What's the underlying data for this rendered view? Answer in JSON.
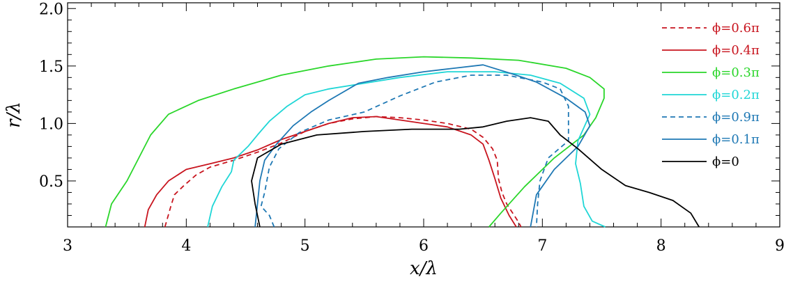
{
  "chart_data": {
    "type": "line",
    "title": "",
    "xlabel": "x/λ",
    "ylabel": "r/λ",
    "xlim": [
      3,
      9
    ],
    "ylim": [
      0.1,
      2.05
    ],
    "x_ticks": [
      3,
      4,
      5,
      6,
      7,
      8,
      9
    ],
    "x_tick_labels": [
      "3",
      "4",
      "5",
      "6",
      "7",
      "8",
      "9"
    ],
    "y_ticks": [
      0.5,
      1.0,
      1.5,
      2.0
    ],
    "y_tick_labels": [
      "0.5",
      "1.0",
      "1.5",
      "2.0"
    ],
    "grid": false,
    "legend_position": "top-right",
    "series": [
      {
        "name": "ϕ=0.6π",
        "color": "#c8141e",
        "dash": "dashed",
        "points": [
          [
            3.82,
            0.1
          ],
          [
            3.87,
            0.28
          ],
          [
            3.9,
            0.38
          ],
          [
            3.98,
            0.46
          ],
          [
            4.08,
            0.55
          ],
          [
            4.2,
            0.62
          ],
          [
            4.4,
            0.68
          ],
          [
            4.6,
            0.75
          ],
          [
            4.8,
            0.83
          ],
          [
            5.0,
            0.93
          ],
          [
            5.2,
            1.0
          ],
          [
            5.4,
            1.04
          ],
          [
            5.6,
            1.06
          ],
          [
            5.8,
            1.05
          ],
          [
            6.0,
            1.03
          ],
          [
            6.2,
            1.0
          ],
          [
            6.4,
            0.95
          ],
          [
            6.5,
            0.88
          ],
          [
            6.58,
            0.78
          ],
          [
            6.62,
            0.68
          ],
          [
            6.63,
            0.52
          ],
          [
            6.66,
            0.4
          ],
          [
            6.7,
            0.3
          ],
          [
            6.75,
            0.22
          ],
          [
            6.8,
            0.14
          ],
          [
            6.82,
            0.1
          ]
        ]
      },
      {
        "name": "ϕ=0.4π",
        "color": "#c8141e",
        "dash": "solid",
        "points": [
          [
            3.65,
            0.1
          ],
          [
            3.68,
            0.25
          ],
          [
            3.75,
            0.38
          ],
          [
            3.85,
            0.5
          ],
          [
            4.0,
            0.6
          ],
          [
            4.2,
            0.65
          ],
          [
            4.4,
            0.7
          ],
          [
            4.6,
            0.77
          ],
          [
            4.8,
            0.86
          ],
          [
            5.0,
            0.93
          ],
          [
            5.2,
            1.0
          ],
          [
            5.4,
            1.05
          ],
          [
            5.6,
            1.06
          ],
          [
            5.8,
            1.03
          ],
          [
            6.0,
            1.0
          ],
          [
            6.2,
            0.97
          ],
          [
            6.4,
            0.9
          ],
          [
            6.5,
            0.82
          ],
          [
            6.55,
            0.68
          ],
          [
            6.6,
            0.52
          ],
          [
            6.65,
            0.35
          ],
          [
            6.72,
            0.2
          ],
          [
            6.78,
            0.1
          ]
        ]
      },
      {
        "name": "ϕ=0.3π",
        "color": "#2ad62a",
        "dash": "solid",
        "points": [
          [
            3.32,
            0.1
          ],
          [
            3.37,
            0.3
          ],
          [
            3.5,
            0.5
          ],
          [
            3.6,
            0.7
          ],
          [
            3.7,
            0.9
          ],
          [
            3.85,
            1.08
          ],
          [
            4.1,
            1.2
          ],
          [
            4.4,
            1.3
          ],
          [
            4.8,
            1.42
          ],
          [
            5.2,
            1.5
          ],
          [
            5.6,
            1.56
          ],
          [
            6.0,
            1.58
          ],
          [
            6.4,
            1.57
          ],
          [
            6.8,
            1.55
          ],
          [
            7.2,
            1.48
          ],
          [
            7.4,
            1.4
          ],
          [
            7.52,
            1.3
          ],
          [
            7.52,
            1.22
          ],
          [
            7.45,
            1.05
          ],
          [
            7.35,
            0.9
          ],
          [
            7.1,
            0.7
          ],
          [
            6.85,
            0.45
          ],
          [
            6.65,
            0.22
          ],
          [
            6.55,
            0.1
          ]
        ]
      },
      {
        "name": "ϕ=0.2π",
        "color": "#1fd6d6",
        "dash": "solid",
        "points": [
          [
            4.18,
            0.1
          ],
          [
            4.22,
            0.28
          ],
          [
            4.3,
            0.45
          ],
          [
            4.38,
            0.58
          ],
          [
            4.4,
            0.68
          ],
          [
            4.52,
            0.8
          ],
          [
            4.6,
            0.9
          ],
          [
            4.7,
            1.02
          ],
          [
            4.85,
            1.15
          ],
          [
            5.0,
            1.25
          ],
          [
            5.2,
            1.3
          ],
          [
            5.5,
            1.35
          ],
          [
            5.8,
            1.4
          ],
          [
            6.2,
            1.45
          ],
          [
            6.6,
            1.45
          ],
          [
            6.9,
            1.42
          ],
          [
            7.15,
            1.35
          ],
          [
            7.35,
            1.22
          ],
          [
            7.4,
            1.08
          ],
          [
            7.3,
            0.85
          ],
          [
            7.28,
            0.65
          ],
          [
            7.32,
            0.48
          ],
          [
            7.35,
            0.28
          ],
          [
            7.42,
            0.15
          ],
          [
            7.53,
            0.1
          ]
        ]
      },
      {
        "name": "ϕ=0.9π",
        "color": "#1e78b4",
        "dash": "dashed",
        "points": [
          [
            4.74,
            0.1
          ],
          [
            4.7,
            0.2
          ],
          [
            4.63,
            0.28
          ],
          [
            4.66,
            0.4
          ],
          [
            4.7,
            0.62
          ],
          [
            4.78,
            0.78
          ],
          [
            4.95,
            0.92
          ],
          [
            5.2,
            1.03
          ],
          [
            5.5,
            1.1
          ],
          [
            5.8,
            1.24
          ],
          [
            6.1,
            1.36
          ],
          [
            6.4,
            1.42
          ],
          [
            6.7,
            1.42
          ],
          [
            7.0,
            1.36
          ],
          [
            7.15,
            1.3
          ],
          [
            7.22,
            1.15
          ],
          [
            7.22,
            1.0
          ],
          [
            7.22,
            0.85
          ],
          [
            7.05,
            0.7
          ],
          [
            6.98,
            0.5
          ],
          [
            6.96,
            0.3
          ],
          [
            6.95,
            0.1
          ]
        ]
      },
      {
        "name": "ϕ=0.1π",
        "color": "#1e78b4",
        "dash": "solid",
        "points": [
          [
            4.58,
            0.1
          ],
          [
            4.6,
            0.3
          ],
          [
            4.62,
            0.5
          ],
          [
            4.66,
            0.68
          ],
          [
            4.76,
            0.82
          ],
          [
            4.9,
            0.98
          ],
          [
            5.05,
            1.1
          ],
          [
            5.2,
            1.2
          ],
          [
            5.45,
            1.35
          ],
          [
            5.7,
            1.4
          ],
          [
            6.0,
            1.45
          ],
          [
            6.25,
            1.48
          ],
          [
            6.5,
            1.51
          ],
          [
            6.75,
            1.43
          ],
          [
            6.95,
            1.36
          ],
          [
            7.2,
            1.22
          ],
          [
            7.36,
            1.1
          ],
          [
            7.4,
            0.98
          ],
          [
            7.3,
            0.8
          ],
          [
            7.1,
            0.6
          ],
          [
            6.95,
            0.38
          ],
          [
            6.9,
            0.1
          ]
        ]
      },
      {
        "name": "ϕ=0",
        "color": "#000000",
        "dash": "solid",
        "points": [
          [
            4.62,
            0.1
          ],
          [
            4.58,
            0.3
          ],
          [
            4.55,
            0.5
          ],
          [
            4.6,
            0.7
          ],
          [
            4.8,
            0.82
          ],
          [
            5.1,
            0.9
          ],
          [
            5.5,
            0.93
          ],
          [
            5.9,
            0.95
          ],
          [
            6.3,
            0.95
          ],
          [
            6.5,
            0.97
          ],
          [
            6.7,
            1.02
          ],
          [
            6.9,
            1.05
          ],
          [
            7.05,
            1.02
          ],
          [
            7.15,
            0.9
          ],
          [
            7.3,
            0.78
          ],
          [
            7.5,
            0.6
          ],
          [
            7.7,
            0.46
          ],
          [
            7.9,
            0.4
          ],
          [
            8.1,
            0.33
          ],
          [
            8.25,
            0.22
          ],
          [
            8.32,
            0.1
          ]
        ]
      }
    ]
  }
}
